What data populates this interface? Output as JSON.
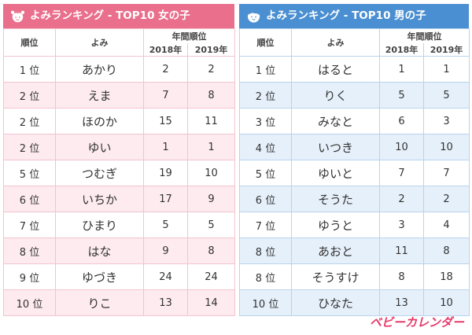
{
  "girls": {
    "title": "よみランキング - TOP10 女の子",
    "headers": {
      "rank": "順位",
      "yomi": "よみ",
      "year_rank": "年間順位",
      "y2018": "2018年",
      "y2019": "2019年"
    },
    "rows": [
      {
        "rank": "1 位",
        "yomi": "あかり",
        "r2018": "2",
        "r2019": "2"
      },
      {
        "rank": "2 位",
        "yomi": "えま",
        "r2018": "7",
        "r2019": "8"
      },
      {
        "rank": "2 位",
        "yomi": "ほのか",
        "r2018": "15",
        "r2019": "11"
      },
      {
        "rank": "2 位",
        "yomi": "ゆい",
        "r2018": "1",
        "r2019": "1"
      },
      {
        "rank": "5 位",
        "yomi": "つむぎ",
        "r2018": "19",
        "r2019": "10"
      },
      {
        "rank": "6 位",
        "yomi": "いちか",
        "r2018": "17",
        "r2019": "9"
      },
      {
        "rank": "7 位",
        "yomi": "ひまり",
        "r2018": "5",
        "r2019": "5"
      },
      {
        "rank": "8 位",
        "yomi": "はな",
        "r2018": "9",
        "r2019": "8"
      },
      {
        "rank": "9 位",
        "yomi": "ゆづき",
        "r2018": "24",
        "r2019": "24"
      },
      {
        "rank": "10 位",
        "yomi": "りこ",
        "r2018": "13",
        "r2019": "14"
      }
    ]
  },
  "boys": {
    "title": "よみランキング - TOP10 男の子",
    "headers": {
      "rank": "順位",
      "yomi": "よみ",
      "year_rank": "年間順位",
      "y2018": "2018年",
      "y2019": "2019年"
    },
    "rows": [
      {
        "rank": "1 位",
        "yomi": "はると",
        "r2018": "1",
        "r2019": "1"
      },
      {
        "rank": "2 位",
        "yomi": "りく",
        "r2018": "5",
        "r2019": "5"
      },
      {
        "rank": "3 位",
        "yomi": "みなと",
        "r2018": "6",
        "r2019": "3"
      },
      {
        "rank": "4 位",
        "yomi": "いつき",
        "r2018": "10",
        "r2019": "10"
      },
      {
        "rank": "5 位",
        "yomi": "ゆいと",
        "r2018": "7",
        "r2019": "7"
      },
      {
        "rank": "6 位",
        "yomi": "そうた",
        "r2018": "2",
        "r2019": "2"
      },
      {
        "rank": "7 位",
        "yomi": "ゆうと",
        "r2018": "3",
        "r2019": "4"
      },
      {
        "rank": "8 位",
        "yomi": "あおと",
        "r2018": "11",
        "r2019": "8"
      },
      {
        "rank": "8 位",
        "yomi": "そうすけ",
        "r2018": "8",
        "r2019": "18"
      },
      {
        "rank": "10 位",
        "yomi": "ひなた",
        "r2018": "13",
        "r2019": "10"
      }
    ]
  },
  "brand": {
    "logo": "ベビーカレンダー"
  },
  "colors": {
    "girls_accent": "#e96f8c",
    "boys_accent": "#4a8fd1",
    "brand": "#e63a6a"
  },
  "icons": {
    "girls_icon": "girl-face-icon",
    "boys_icon": "boy-face-icon"
  }
}
